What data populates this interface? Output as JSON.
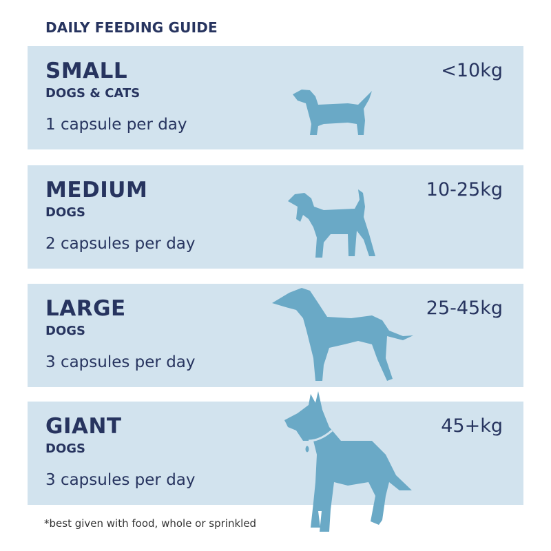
{
  "title": "DAILY FEEDING GUIDE",
  "colors": {
    "panel": "#d2e3ee",
    "dog": "#6aa9c6",
    "text": "#27345f"
  },
  "tiers": [
    {
      "name": "SMALL",
      "sub": "DOGS & CATS",
      "dose": "1 capsule per day",
      "weight": "<10kg",
      "icon": "dachshund-icon"
    },
    {
      "name": "MEDIUM",
      "sub": "DOGS",
      "dose": "2 capsules per day",
      "weight": "10-25kg",
      "icon": "beagle-icon"
    },
    {
      "name": "LARGE",
      "sub": "DOGS",
      "dose": "3 capsules per day",
      "weight": "25-45kg",
      "icon": "greyhound-icon"
    },
    {
      "name": "GIANT",
      "sub": "DOGS",
      "dose": "3 capsules per day",
      "weight": "45+kg",
      "icon": "great-dane-icon"
    }
  ],
  "footnote": "*best given with food, whole or sprinkled"
}
